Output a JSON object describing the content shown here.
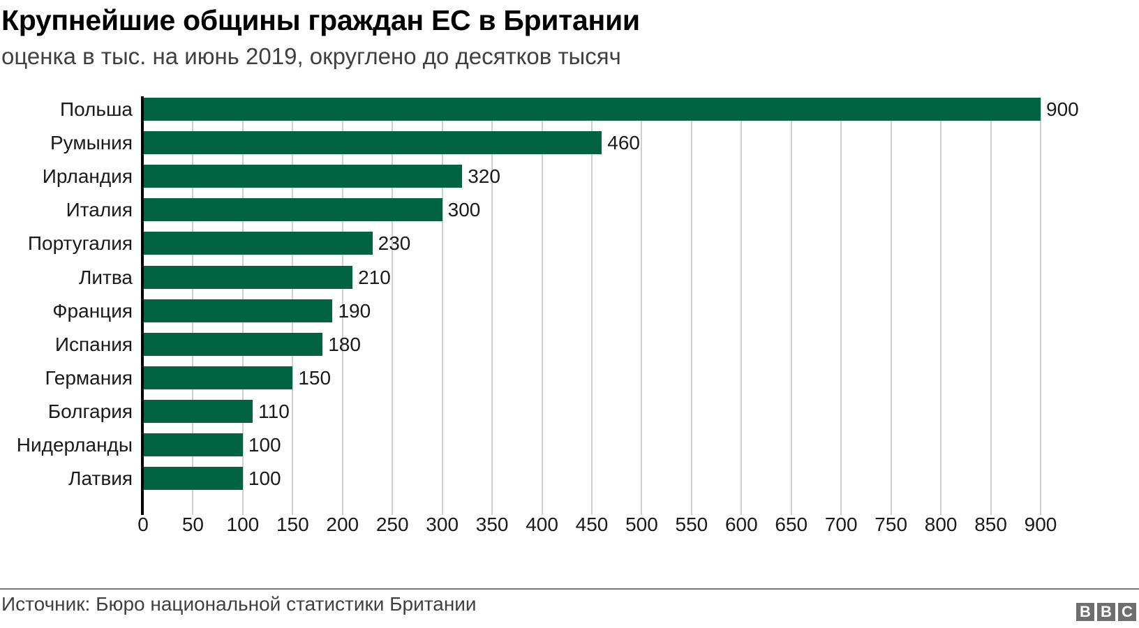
{
  "header": {
    "title": "Крупнейшие общины граждан ЕС в Британии",
    "subtitle": "оценка в тыс. на июнь 2019, округлено до десятков тысяч"
  },
  "footer": {
    "source": "Источник: Бюро национальной статистики Британии",
    "logo_letters": [
      "B",
      "B",
      "C"
    ]
  },
  "colors": {
    "bar": "#006341",
    "grid": "#cfcfcf",
    "axis": "#000000",
    "logo_bg": "#6e6e6e"
  },
  "chart_data": {
    "type": "bar",
    "orientation": "horizontal",
    "title": "Крупнейшие общины граждан ЕС в Британии",
    "subtitle": "оценка в тыс. на июнь 2019, округлено до десятков тысяч",
    "xlabel": "",
    "ylabel": "",
    "categories": [
      "Польша",
      "Румыния",
      "Ирландия",
      "Италия",
      "Португалия",
      "Литва",
      "Франция",
      "Испания",
      "Германия",
      "Болгария",
      "Нидерланды",
      "Латвия"
    ],
    "values": [
      900,
      460,
      320,
      300,
      230,
      210,
      190,
      180,
      150,
      110,
      100,
      100
    ],
    "data_labels": [
      "900",
      "460",
      "320",
      "300",
      "230",
      "210",
      "190",
      "180",
      "150",
      "110",
      "100",
      "100"
    ],
    "xlim": [
      0,
      900
    ],
    "xticks": [
      0,
      50,
      100,
      150,
      200,
      250,
      300,
      350,
      400,
      450,
      500,
      550,
      600,
      650,
      700,
      750,
      800,
      850,
      900
    ],
    "grid": "vertical",
    "legend": "none",
    "source": "Источник: Бюро национальной статистики Британии"
  }
}
